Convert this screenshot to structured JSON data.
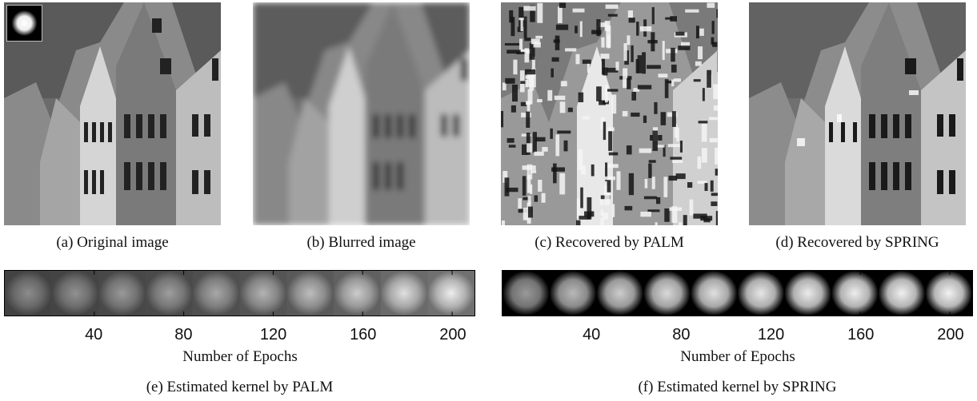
{
  "panels": [
    {
      "id": "a",
      "caption": "(a) Original image"
    },
    {
      "id": "b",
      "caption": "(b) Blurred image"
    },
    {
      "id": "c",
      "caption": "(c) Recovered by PALM"
    },
    {
      "id": "d",
      "caption": "(d) Recovered by SPRING"
    }
  ],
  "kernel_plots": [
    {
      "id": "e",
      "caption": "(e) Estimated kernel by PALM",
      "xlabel": "Number of Epochs",
      "ticks": [
        "40",
        "80",
        "120",
        "160",
        "200"
      ],
      "xlim": [
        0,
        210
      ],
      "tick_values": [
        40,
        80,
        120,
        160,
        200
      ],
      "kernel_count": 10,
      "kernel_peak": [
        0.55,
        0.57,
        0.6,
        0.62,
        0.66,
        0.7,
        0.74,
        0.8,
        0.88,
        0.93
      ]
    },
    {
      "id": "f",
      "caption": "(f) Estimated kernel by SPRING",
      "xlabel": "Number of Epochs",
      "ticks": [
        "40",
        "80",
        "120",
        "160",
        "200"
      ],
      "xlim": [
        0,
        210
      ],
      "tick_values": [
        40,
        80,
        120,
        160,
        200
      ],
      "kernel_count": 10,
      "kernel_peak": [
        0.6,
        0.72,
        0.8,
        0.85,
        0.88,
        0.9,
        0.92,
        0.93,
        0.94,
        0.95
      ]
    }
  ],
  "colors": {
    "frame": "#000000",
    "background": "#ffffff"
  }
}
